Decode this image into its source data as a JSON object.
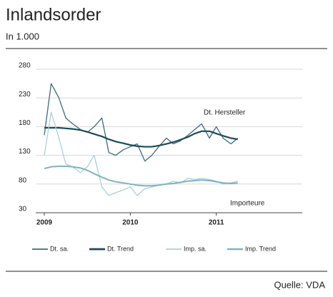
{
  "chart_data": {
    "type": "line",
    "title": "Inlandsorder",
    "subtitle": "In 1.000",
    "source": "Quelle: VDA",
    "annotations": [
      "Dt. Hersteller",
      "Importeure"
    ],
    "x": [
      2009.0,
      2009.08,
      2009.17,
      2009.25,
      2009.33,
      2009.42,
      2009.5,
      2009.58,
      2009.67,
      2009.75,
      2009.83,
      2009.92,
      2010.0,
      2010.08,
      2010.17,
      2010.25,
      2010.33,
      2010.42,
      2010.5,
      2010.58,
      2010.67,
      2010.75,
      2010.83,
      2010.92,
      2011.0,
      2011.08,
      2011.17,
      2011.25
    ],
    "series": [
      {
        "name": "Dt. sa.",
        "color": "#3d6a7d",
        "width": 1.3,
        "values": [
          165,
          255,
          230,
          195,
          185,
          175,
          170,
          180,
          195,
          135,
          130,
          140,
          145,
          150,
          120,
          130,
          145,
          160,
          150,
          155,
          165,
          175,
          185,
          160,
          180,
          160,
          150,
          160
        ]
      },
      {
        "name": "Dt. Trend",
        "color": "#1b4a5e",
        "width": 2.2,
        "values": [
          178,
          178,
          178,
          177,
          176,
          174,
          171,
          167,
          163,
          158,
          154,
          151,
          148,
          146,
          145,
          145,
          147,
          150,
          153,
          157,
          162,
          168,
          172,
          172,
          168,
          164,
          160,
          158
        ]
      },
      {
        "name": "Imp. sa.",
        "color": "#a9d1d9",
        "width": 1.3,
        "values": [
          130,
          205,
          160,
          115,
          110,
          100,
          110,
          130,
          75,
          60,
          65,
          70,
          75,
          60,
          72,
          75,
          78,
          80,
          85,
          82,
          90,
          88,
          90,
          88,
          85,
          80,
          82,
          85
        ]
      },
      {
        "name": "Imp. Trend",
        "color": "#7fb2c2",
        "width": 2,
        "values": [
          107,
          110,
          111,
          111,
          110,
          108,
          104,
          98,
          92,
          87,
          84,
          82,
          80,
          78,
          77,
          77,
          78,
          80,
          81,
          83,
          85,
          86,
          87,
          86,
          84,
          82,
          81,
          82
        ]
      }
    ],
    "xlim": [
      2009,
      2012
    ],
    "xticks": [
      2009,
      2010,
      2011
    ],
    "ylim": [
      30,
      280
    ],
    "yticks": [
      30,
      80,
      130,
      180,
      230,
      280
    ],
    "grid": true
  }
}
